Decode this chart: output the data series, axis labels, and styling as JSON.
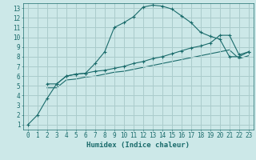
{
  "bg_color": "#cce8e8",
  "grid_color": "#aacccc",
  "line_color": "#1a6b6b",
  "xlabel": "Humidex (Indice chaleur)",
  "xlim": [
    -0.5,
    23.5
  ],
  "ylim": [
    0.5,
    13.5
  ],
  "xticks": [
    0,
    1,
    2,
    3,
    4,
    5,
    6,
    7,
    8,
    9,
    10,
    11,
    12,
    13,
    14,
    15,
    16,
    17,
    18,
    19,
    20,
    21,
    22,
    23
  ],
  "yticks": [
    1,
    2,
    3,
    4,
    5,
    6,
    7,
    8,
    9,
    10,
    11,
    12,
    13
  ],
  "curve1_x": [
    0,
    1,
    2,
    3,
    4,
    5,
    6,
    7,
    8,
    9,
    10,
    11,
    12,
    13,
    14,
    15,
    16,
    17,
    18,
    19,
    20,
    21,
    22,
    23
  ],
  "curve1_y": [
    1.0,
    2.0,
    3.7,
    5.2,
    6.0,
    6.2,
    6.3,
    7.3,
    8.5,
    11.0,
    11.5,
    12.1,
    13.1,
    13.3,
    13.2,
    12.9,
    12.2,
    11.5,
    10.5,
    10.1,
    9.8,
    8.0,
    8.0,
    8.5
  ],
  "curve2_x": [
    2,
    3,
    4,
    5,
    6,
    7,
    8,
    9,
    10,
    11,
    12,
    13,
    14,
    15,
    16,
    17,
    18,
    19,
    20,
    21,
    22,
    23
  ],
  "curve2_y": [
    5.2,
    5.2,
    6.0,
    6.2,
    6.3,
    6.5,
    6.6,
    6.8,
    7.0,
    7.3,
    7.5,
    7.8,
    8.0,
    8.3,
    8.6,
    8.9,
    9.1,
    9.4,
    10.2,
    10.2,
    8.2,
    8.5
  ],
  "curve3_x": [
    2,
    3,
    4,
    5,
    6,
    7,
    8,
    9,
    10,
    11,
    12,
    13,
    14,
    15,
    16,
    17,
    18,
    19,
    20,
    21,
    22,
    23
  ],
  "curve3_y": [
    4.8,
    4.8,
    5.6,
    5.7,
    5.9,
    6.0,
    6.2,
    6.4,
    6.5,
    6.7,
    6.9,
    7.1,
    7.3,
    7.5,
    7.7,
    7.9,
    8.1,
    8.3,
    8.5,
    8.7,
    7.8,
    8.1
  ],
  "tick_fontsize": 5.5,
  "label_fontsize": 6.5
}
